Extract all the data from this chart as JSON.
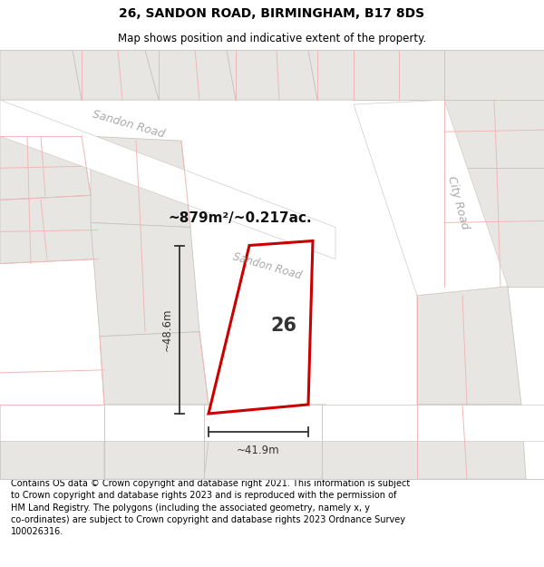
{
  "title": "26, SANDON ROAD, BIRMINGHAM, B17 8DS",
  "subtitle": "Map shows position and indicative extent of the property.",
  "footer": "Contains OS data © Crown copyright and database right 2021. This information is subject to Crown copyright and database rights 2023 and is reproduced with the permission of HM Land Registry. The polygons (including the associated geometry, namely x, y co-ordinates) are subject to Crown copyright and database rights 2023 Ordnance Survey 100026316.",
  "area_text": "~879m²/~0.217ac.",
  "plot_number": "26",
  "dim_width": "~41.9m",
  "dim_height": "~48.6m",
  "map_bg": "#f7f6f4",
  "building_fill": "#e8e6e3",
  "building_edge": "#c8c5c0",
  "road_fill": "#ffffff",
  "road_edge": "#d0ccc7",
  "plot_fill": "#ffffff",
  "plot_border": "#cc0000",
  "line_color": "#f0b8b8",
  "road_label_color": "#aaaaaa",
  "dim_line_color": "#333333"
}
